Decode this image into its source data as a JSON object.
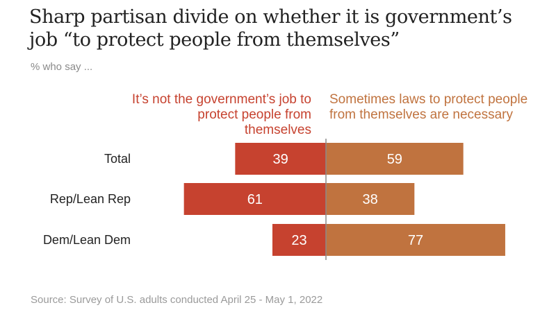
{
  "title": "Sharp partisan divide on whether it is government’s job “to protect people from themselves”",
  "subtitle": "% who say ...",
  "source": "Source: Survey of U.S. adults conducted April 25 - May 1, 2022",
  "colors": {
    "left": "#c6422f",
    "right": "#c0733f",
    "axis": "#8a8a8a",
    "label": "#222222",
    "bar_text": "#ffffff"
  },
  "chart_data": {
    "type": "bar",
    "orientation": "horizontal-diverging",
    "categories": [
      "Total",
      "Rep/Lean Rep",
      "Dem/Lean Dem"
    ],
    "series": [
      {
        "name": "It’s not the government’s job to protect people from themselves",
        "values": [
          39,
          61,
          23
        ]
      },
      {
        "name": "Sometimes laws to protect people from themselves are necessary",
        "values": [
          59,
          38,
          77
        ]
      }
    ]
  }
}
